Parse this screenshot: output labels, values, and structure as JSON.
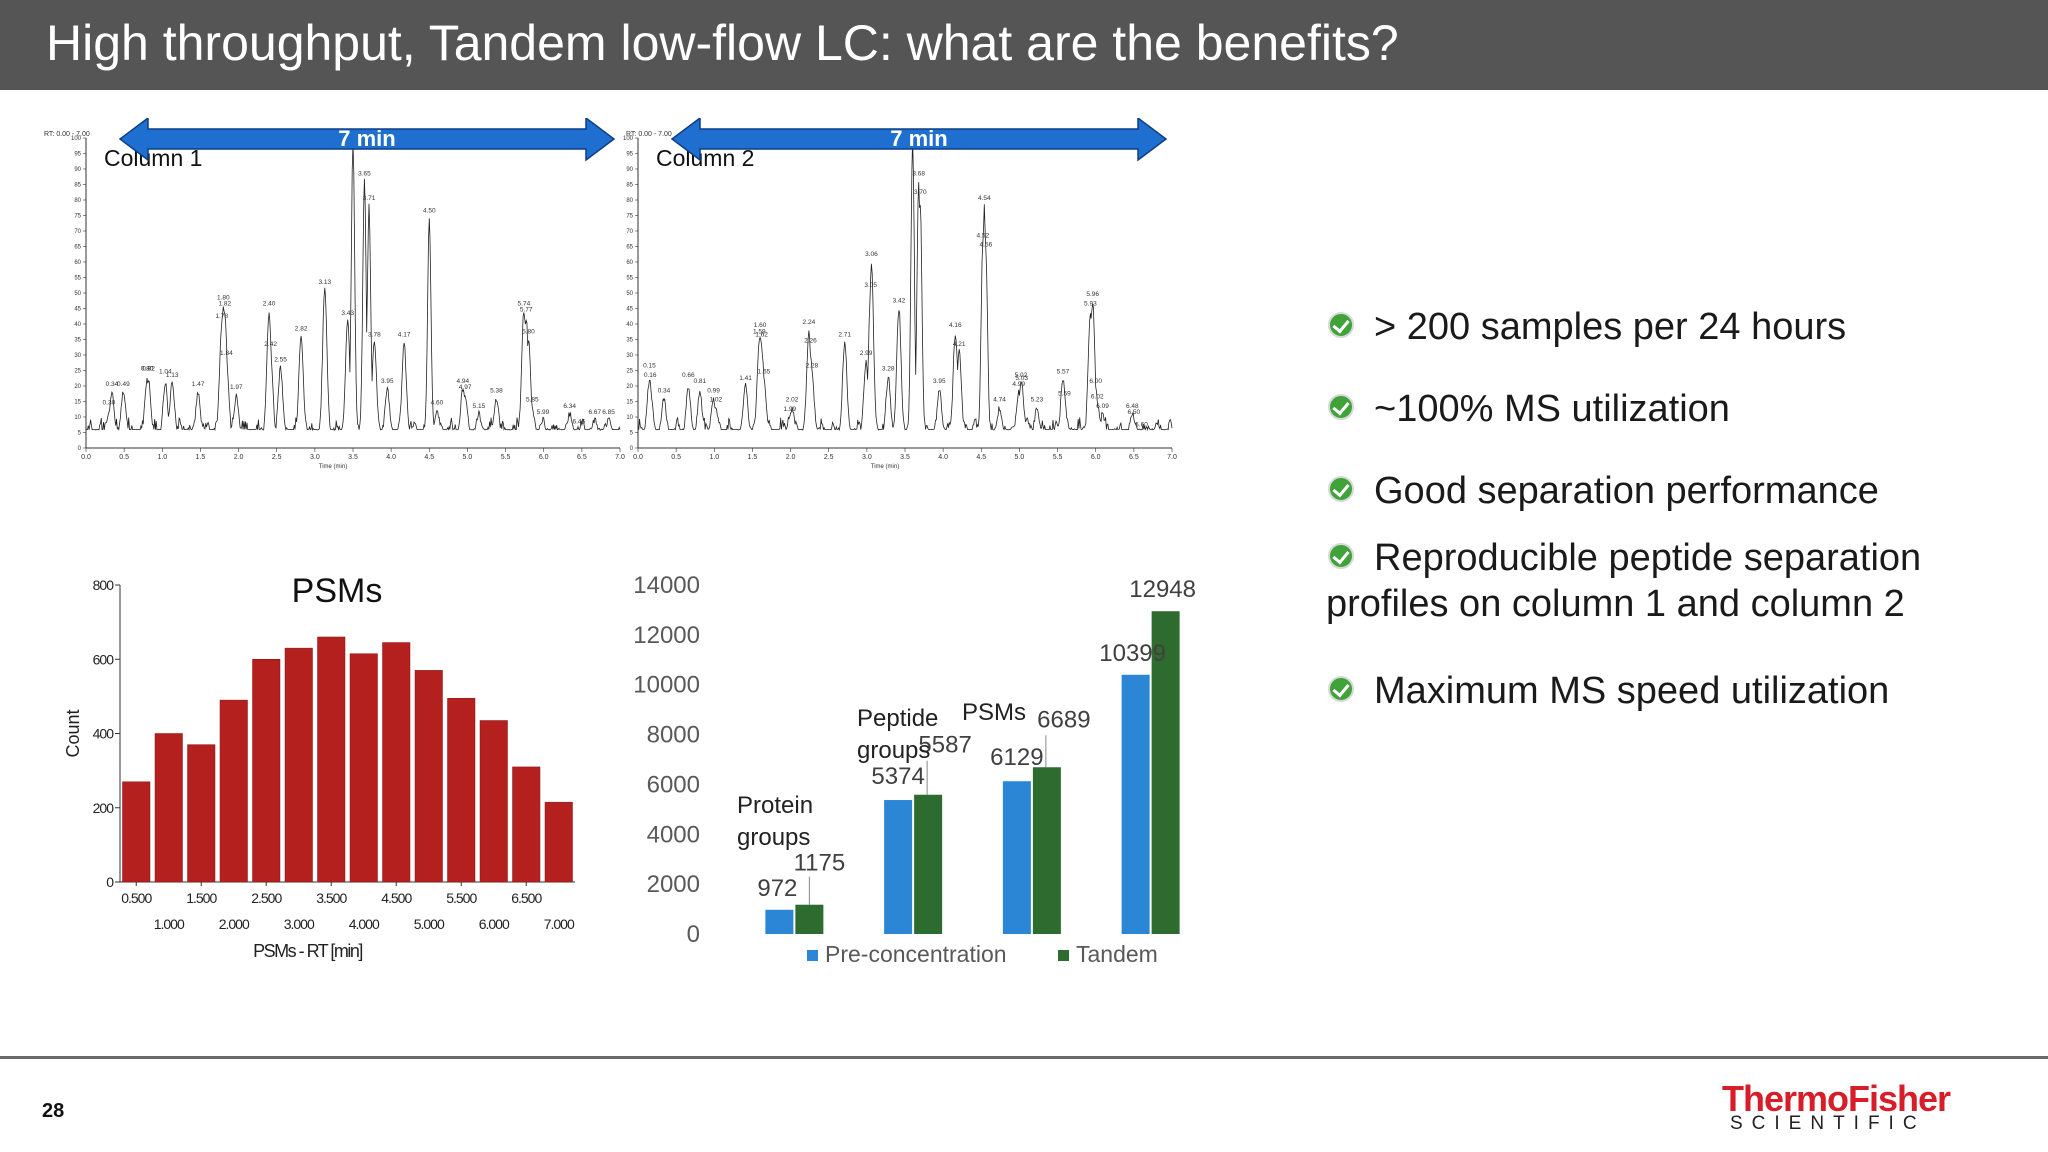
{
  "slide": {
    "title": "High throughput, Tandem low-flow LC: what are the benefits?",
    "page_number": "28",
    "logo_main": "ThermoFisher",
    "logo_sub": "SCIENTIFIC",
    "colors": {
      "title_bar": "#555555",
      "arrow_blue": "#1f6fd1",
      "psm_bar": "#b3201e",
      "pre_conc": "#2b87d6",
      "tandem": "#2e6b2e",
      "check": "#3fa33a",
      "logo_red": "#d71e28"
    }
  },
  "chromatograms": {
    "arrow_label": "7 min",
    "rt_label": "RT: 0.00 - 7.00",
    "x_axis_label": "Time (min)",
    "y_ticks": [
      "0",
      "5",
      "10",
      "15",
      "20",
      "25",
      "30",
      "35",
      "40",
      "45",
      "50",
      "55",
      "60",
      "65",
      "70",
      "75",
      "80",
      "85",
      "90",
      "95",
      "100"
    ],
    "x_ticks": [
      "0.0",
      "0.5",
      "1.0",
      "1.5",
      "2.0",
      "2.5",
      "3.0",
      "3.5",
      "4.0",
      "4.5",
      "5.0",
      "5.5",
      "6.0",
      "6.5",
      "7.0"
    ],
    "columns": [
      {
        "label": "Column 1",
        "peaks": [
          {
            "t": 0.3,
            "i": 13
          },
          {
            "t": 0.34,
            "i": 19
          },
          {
            "t": 0.49,
            "i": 19
          },
          {
            "t": 0.8,
            "i": 23
          },
          {
            "t": 0.82,
            "i": 23
          },
          {
            "t": 1.04,
            "i": 22
          },
          {
            "t": 1.13,
            "i": 22
          },
          {
            "t": 1.47,
            "i": 19
          },
          {
            "t": 1.78,
            "i": 41
          },
          {
            "t": 1.8,
            "i": 47
          },
          {
            "t": 1.82,
            "i": 45
          },
          {
            "t": 1.84,
            "i": 29
          },
          {
            "t": 1.97,
            "i": 18
          },
          {
            "t": 2.4,
            "i": 45
          },
          {
            "t": 2.42,
            "i": 32
          },
          {
            "t": 2.55,
            "i": 27
          },
          {
            "t": 2.82,
            "i": 37
          },
          {
            "t": 3.13,
            "i": 52
          },
          {
            "t": 3.43,
            "i": 42
          },
          {
            "t": 3.5,
            "i": 100
          },
          {
            "t": 3.65,
            "i": 87
          },
          {
            "t": 3.71,
            "i": 79
          },
          {
            "t": 3.78,
            "i": 35
          },
          {
            "t": 3.95,
            "i": 20
          },
          {
            "t": 4.17,
            "i": 35
          },
          {
            "t": 4.5,
            "i": 75
          },
          {
            "t": 4.6,
            "i": 13
          },
          {
            "t": 4.94,
            "i": 20
          },
          {
            "t": 4.97,
            "i": 18
          },
          {
            "t": 5.15,
            "i": 12
          },
          {
            "t": 5.38,
            "i": 17
          },
          {
            "t": 5.74,
            "i": 45
          },
          {
            "t": 5.77,
            "i": 43
          },
          {
            "t": 5.8,
            "i": 36
          },
          {
            "t": 5.85,
            "i": 14
          },
          {
            "t": 5.99,
            "i": 10
          },
          {
            "t": 6.34,
            "i": 12
          },
          {
            "t": 6.46,
            "i": 7
          },
          {
            "t": 6.67,
            "i": 10
          },
          {
            "t": 6.85,
            "i": 10
          }
        ],
        "labels": [
          {
            "t": 0.3,
            "i": 13,
            "text": "0.30"
          },
          {
            "t": 0.34,
            "i": 19,
            "text": "0.34"
          },
          {
            "t": 0.49,
            "i": 19,
            "text": "0.49"
          },
          {
            "t": 0.8,
            "i": 24,
            "text": "0.80"
          },
          {
            "t": 0.82,
            "i": 24,
            "text": "0.82"
          },
          {
            "t": 1.04,
            "i": 23,
            "text": "1.04"
          },
          {
            "t": 1.13,
            "i": 22,
            "text": "1.13"
          },
          {
            "t": 1.47,
            "i": 19,
            "text": "1.47"
          },
          {
            "t": 1.78,
            "i": 41,
            "text": "1.78"
          },
          {
            "t": 1.8,
            "i": 47,
            "text": "1.80"
          },
          {
            "t": 1.82,
            "i": 45,
            "text": "1.82"
          },
          {
            "t": 1.84,
            "i": 29,
            "text": "1.84"
          },
          {
            "t": 1.97,
            "i": 18,
            "text": "1.97"
          },
          {
            "t": 2.4,
            "i": 45,
            "text": "2.40"
          },
          {
            "t": 2.42,
            "i": 32,
            "text": "2.42"
          },
          {
            "t": 2.55,
            "i": 27,
            "text": "2.55"
          },
          {
            "t": 2.82,
            "i": 37,
            "text": "2.82"
          },
          {
            "t": 3.13,
            "i": 52,
            "text": "3.13"
          },
          {
            "t": 3.43,
            "i": 42,
            "text": "3.43"
          },
          {
            "t": 3.65,
            "i": 87,
            "text": "3.65"
          },
          {
            "t": 3.71,
            "i": 79,
            "text": "3.71"
          },
          {
            "t": 3.78,
            "i": 35,
            "text": "3.78"
          },
          {
            "t": 4.17,
            "i": 35,
            "text": "4.17"
          },
          {
            "t": 3.95,
            "i": 20,
            "text": "3.95"
          },
          {
            "t": 4.5,
            "i": 75,
            "text": "4.50"
          },
          {
            "t": 4.6,
            "i": 13,
            "text": "4.60"
          },
          {
            "t": 4.94,
            "i": 20,
            "text": "4.94"
          },
          {
            "t": 4.97,
            "i": 18,
            "text": "4.97"
          },
          {
            "t": 5.15,
            "i": 12,
            "text": "5.15"
          },
          {
            "t": 5.38,
            "i": 17,
            "text": "5.38"
          },
          {
            "t": 5.74,
            "i": 45,
            "text": "5.74"
          },
          {
            "t": 5.77,
            "i": 43,
            "text": "5.77"
          },
          {
            "t": 5.8,
            "i": 36,
            "text": "5.80"
          },
          {
            "t": 5.85,
            "i": 14,
            "text": "5.85"
          },
          {
            "t": 5.99,
            "i": 10,
            "text": "5.99"
          },
          {
            "t": 6.34,
            "i": 12,
            "text": "6.34"
          },
          {
            "t": 6.46,
            "i": 7,
            "text": "6.46"
          },
          {
            "t": 6.67,
            "i": 10,
            "text": "6.67"
          },
          {
            "t": 6.85,
            "i": 10,
            "text": "6.85"
          }
        ]
      },
      {
        "label": "Column 2",
        "peaks": [
          {
            "t": 0.15,
            "i": 23
          },
          {
            "t": 0.16,
            "i": 21
          },
          {
            "t": 0.34,
            "i": 17
          },
          {
            "t": 0.66,
            "i": 21
          },
          {
            "t": 0.81,
            "i": 19
          },
          {
            "t": 0.99,
            "i": 17
          },
          {
            "t": 1.02,
            "i": 14
          },
          {
            "t": 1.41,
            "i": 21
          },
          {
            "t": 1.59,
            "i": 36
          },
          {
            "t": 1.6,
            "i": 37
          },
          {
            "t": 1.62,
            "i": 34
          },
          {
            "t": 1.65,
            "i": 23
          },
          {
            "t": 1.99,
            "i": 11
          },
          {
            "t": 2.02,
            "i": 14
          },
          {
            "t": 2.24,
            "i": 39
          },
          {
            "t": 2.26,
            "i": 32
          },
          {
            "t": 2.28,
            "i": 25
          },
          {
            "t": 2.71,
            "i": 35
          },
          {
            "t": 2.99,
            "i": 29
          },
          {
            "t": 3.05,
            "i": 51
          },
          {
            "t": 3.06,
            "i": 60
          },
          {
            "t": 3.28,
            "i": 24
          },
          {
            "t": 3.42,
            "i": 46
          },
          {
            "t": 3.6,
            "i": 100
          },
          {
            "t": 3.68,
            "i": 87
          },
          {
            "t": 3.7,
            "i": 80
          },
          {
            "t": 3.95,
            "i": 20
          },
          {
            "t": 4.16,
            "i": 38
          },
          {
            "t": 4.21,
            "i": 32
          },
          {
            "t": 4.52,
            "i": 67
          },
          {
            "t": 4.54,
            "i": 79
          },
          {
            "t": 4.56,
            "i": 64
          },
          {
            "t": 4.74,
            "i": 14
          },
          {
            "t": 4.99,
            "i": 19
          },
          {
            "t": 5.02,
            "i": 22
          },
          {
            "t": 5.03,
            "i": 21
          },
          {
            "t": 5.23,
            "i": 14
          },
          {
            "t": 5.57,
            "i": 23
          },
          {
            "t": 5.59,
            "i": 16
          },
          {
            "t": 5.93,
            "i": 45
          },
          {
            "t": 5.96,
            "i": 48
          },
          {
            "t": 6.0,
            "i": 20
          },
          {
            "t": 6.02,
            "i": 15
          },
          {
            "t": 6.09,
            "i": 12
          },
          {
            "t": 6.48,
            "i": 12
          },
          {
            "t": 6.5,
            "i": 10
          },
          {
            "t": 6.6,
            "i": 6
          }
        ],
        "labels": [
          {
            "t": 0.15,
            "i": 25,
            "text": "0.15"
          },
          {
            "t": 0.16,
            "i": 22,
            "text": "0.16"
          },
          {
            "t": 0.34,
            "i": 17,
            "text": "0.34"
          },
          {
            "t": 0.66,
            "i": 22,
            "text": "0.66"
          },
          {
            "t": 0.81,
            "i": 20,
            "text": "0.81"
          },
          {
            "t": 0.99,
            "i": 17,
            "text": "0.99"
          },
          {
            "t": 1.02,
            "i": 14,
            "text": "1.02"
          },
          {
            "t": 1.41,
            "i": 21,
            "text": "1.41"
          },
          {
            "t": 1.59,
            "i": 36,
            "text": "1.59"
          },
          {
            "t": 1.6,
            "i": 38,
            "text": "1.60"
          },
          {
            "t": 1.62,
            "i": 35,
            "text": "1.62"
          },
          {
            "t": 1.65,
            "i": 23,
            "text": "1.65"
          },
          {
            "t": 1.99,
            "i": 11,
            "text": "1.99"
          },
          {
            "t": 2.02,
            "i": 14,
            "text": "2.02"
          },
          {
            "t": 2.24,
            "i": 39,
            "text": "2.24"
          },
          {
            "t": 2.26,
            "i": 33,
            "text": "2.26"
          },
          {
            "t": 2.28,
            "i": 25,
            "text": "2.28"
          },
          {
            "t": 2.71,
            "i": 35,
            "text": "2.71"
          },
          {
            "t": 2.99,
            "i": 29,
            "text": "2.99"
          },
          {
            "t": 3.05,
            "i": 51,
            "text": "3.05"
          },
          {
            "t": 3.06,
            "i": 61,
            "text": "3.06"
          },
          {
            "t": 3.28,
            "i": 24,
            "text": "3.28"
          },
          {
            "t": 3.42,
            "i": 46,
            "text": "3.42"
          },
          {
            "t": 3.6,
            "i": 100,
            "text": "3.60"
          },
          {
            "t": 3.68,
            "i": 87,
            "text": "3.68"
          },
          {
            "t": 3.7,
            "i": 81,
            "text": "3.70"
          },
          {
            "t": 3.95,
            "i": 20,
            "text": "3.95"
          },
          {
            "t": 4.16,
            "i": 38,
            "text": "4.16"
          },
          {
            "t": 4.21,
            "i": 32,
            "text": "4.21"
          },
          {
            "t": 4.52,
            "i": 67,
            "text": "4.52"
          },
          {
            "t": 4.54,
            "i": 79,
            "text": "4.54"
          },
          {
            "t": 4.56,
            "i": 64,
            "text": "4.56"
          },
          {
            "t": 4.74,
            "i": 14,
            "text": "4.74"
          },
          {
            "t": 4.99,
            "i": 19,
            "text": "4.99"
          },
          {
            "t": 5.02,
            "i": 22,
            "text": "5.02"
          },
          {
            "t": 5.03,
            "i": 21,
            "text": "5.03"
          },
          {
            "t": 5.23,
            "i": 14,
            "text": "5.23"
          },
          {
            "t": 5.57,
            "i": 23,
            "text": "5.57"
          },
          {
            "t": 5.59,
            "i": 16,
            "text": "5.59"
          },
          {
            "t": 5.93,
            "i": 45,
            "text": "5.93"
          },
          {
            "t": 5.96,
            "i": 48,
            "text": "5.96"
          },
          {
            "t": 6.0,
            "i": 20,
            "text": "6.00"
          },
          {
            "t": 6.02,
            "i": 15,
            "text": "6.02"
          },
          {
            "t": 6.09,
            "i": 12,
            "text": "6.09"
          },
          {
            "t": 6.48,
            "i": 12,
            "text": "6.48"
          },
          {
            "t": 6.5,
            "i": 10,
            "text": "6.50"
          },
          {
            "t": 6.6,
            "i": 6,
            "text": "6.60"
          }
        ]
      }
    ]
  },
  "bullets": [
    {
      "text": "> 200 samples per 24 hours"
    },
    {
      "text": "~100% MS utilization"
    },
    {
      "text": "Good separation performance"
    },
    {
      "text": "Reproducible peptide separation",
      "text2": "profiles on column 1 and column 2"
    },
    {
      "text": "Maximum MS speed utilization"
    }
  ],
  "chart_data": [
    {
      "type": "bar",
      "title": "PSMs",
      "xlabel": "PSMs - RT [min]",
      "ylabel": "Count",
      "ylim": [
        0,
        800
      ],
      "y_ticks": [
        "0",
        "200",
        "400",
        "600",
        "800"
      ],
      "x_ticks_row1": [
        "0.500",
        "1.500",
        "2.500",
        "3.500",
        "4.500",
        "5.500",
        "6.500"
      ],
      "x_ticks_row2": [
        "1.000",
        "2.000",
        "3.000",
        "4.000",
        "5.000",
        "6.000",
        "7.000"
      ],
      "x_range": [
        0.25,
        7.25
      ],
      "bin_centers": [
        0.5,
        1.0,
        1.5,
        2.0,
        2.5,
        3.0,
        3.5,
        4.0,
        4.5,
        5.0,
        5.5,
        6.0,
        6.5,
        7.0
      ],
      "values": [
        270,
        400,
        370,
        490,
        600,
        630,
        660,
        615,
        645,
        570,
        495,
        435,
        310,
        215
      ]
    },
    {
      "type": "bar",
      "categories": [
        "Protein groups",
        "Peptide groups",
        "PSMs",
        ""
      ],
      "category_labels": [
        {
          "line1": "Protein",
          "line2": "groups"
        },
        {
          "line1": "Peptide",
          "line2": "groups"
        },
        {
          "line1": "PSMs",
          "line2": ""
        },
        {
          "line1": "",
          "line2": ""
        }
      ],
      "ylim": [
        0,
        14000
      ],
      "y_ticks": [
        "0",
        "2000",
        "4000",
        "6000",
        "8000",
        "10000",
        "12000",
        "14000"
      ],
      "series": [
        {
          "name": "Pre-concentration",
          "values": [
            972,
            5374,
            6129,
            10399
          ]
        },
        {
          "name": "Tandem",
          "values": [
            1175,
            5587,
            6689,
            12948
          ]
        }
      ],
      "legend": "bottom"
    }
  ]
}
